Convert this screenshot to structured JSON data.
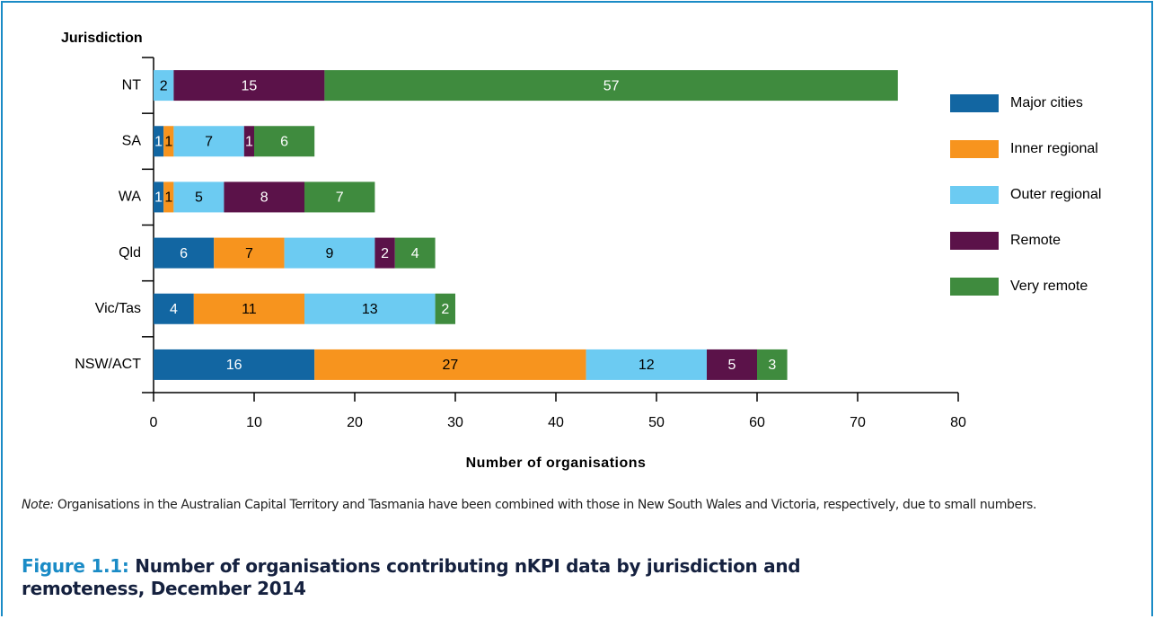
{
  "chart_data": {
    "type": "stacked-horizontal-bar",
    "y_axis_title": "Jurisdiction",
    "x_axis_title": "Number of organisations",
    "categories": [
      "NT",
      "SA",
      "WA",
      "Qld",
      "Vic/Tas",
      "NSW/ACT"
    ],
    "series": [
      {
        "name": "Major cities",
        "color": "#1266a2",
        "values": [
          null,
          1,
          1,
          6,
          4,
          16
        ]
      },
      {
        "name": "Inner regional",
        "color": "#f7941e",
        "values": [
          null,
          1,
          1,
          7,
          11,
          27
        ]
      },
      {
        "name": "Outer regional",
        "color": "#6ccbf2",
        "values": [
          2,
          7,
          5,
          9,
          13,
          12
        ]
      },
      {
        "name": "Remote",
        "color": "#5b1249",
        "values": [
          15,
          1,
          8,
          2,
          null,
          5
        ]
      },
      {
        "name": "Very remote",
        "color": "#3f8b3e",
        "values": [
          57,
          6,
          7,
          4,
          2,
          3
        ]
      }
    ],
    "xlim": [
      0,
      80
    ],
    "xticks": [
      0,
      10,
      20,
      30,
      40,
      50,
      60,
      70,
      80
    ],
    "legend": "right"
  },
  "note": {
    "label": "Note:",
    "text": "Organisations in the Australian Capital Territory and Tasmania have been combined with those in New South Wales and Victoria, respectively, due to small numbers."
  },
  "caption": {
    "label": "Figure 1.1:",
    "text": "Number of organisations contributing nKPI data by jurisdiction and remoteness, December 2014"
  }
}
